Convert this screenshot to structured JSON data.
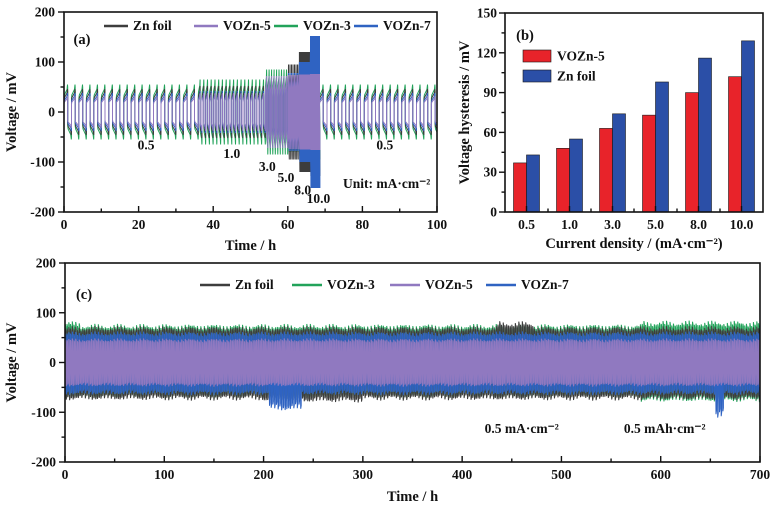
{
  "figure_bg": "#ffffff",
  "colors": {
    "axis": "#111111",
    "zn_foil": "#3d3d3d",
    "vozn3": "#22a35a",
    "vozn5": "#9079c0",
    "vozn7": "#2f63c2",
    "bar_vozn5": "#e8232a",
    "bar_zn": "#2b4fa7"
  },
  "chart_data": [
    {
      "id": "a",
      "type": "line",
      "panel_label": "(a)",
      "xlabel": "Time / h",
      "ylabel": "Voltage / mV",
      "xlim": [
        0,
        100
      ],
      "ylim": [
        -200,
        200
      ],
      "xticks": [
        0,
        20,
        40,
        60,
        80,
        100
      ],
      "yticks": [
        -200,
        -100,
        0,
        100,
        200
      ],
      "x_minor": 10,
      "y_minor": 50,
      "legend": [
        {
          "key": "zn_foil",
          "label": "Zn foil"
        },
        {
          "key": "vozn5",
          "label": "VOZn-5"
        },
        {
          "key": "vozn3",
          "label": "VOZn-3"
        },
        {
          "key": "vozn7",
          "label": "VOZn-7"
        }
      ],
      "annotations": [
        {
          "text": "0.5",
          "x": 22,
          "y": -75
        },
        {
          "text": "1.0",
          "x": 45,
          "y": -92
        },
        {
          "text": "3.0",
          "x": 54.5,
          "y": -118
        },
        {
          "text": "5.0",
          "x": 59.5,
          "y": -140
        },
        {
          "text": "8.0",
          "x": 64,
          "y": -165
        },
        {
          "text": "10.0",
          "x": 68.2,
          "y": -182
        },
        {
          "text": "0.5",
          "x": 86,
          "y": -75
        },
        {
          "text": "Unit: mA·cm⁻²",
          "x": 86.5,
          "y": -152
        }
      ],
      "segments": [
        {
          "current": "0.5",
          "t0": 0,
          "t1": 36,
          "period": 2
        },
        {
          "current": "1.0",
          "t0": 36,
          "t1": 54,
          "period": 1
        },
        {
          "current": "3.0",
          "t0": 54,
          "t1": 60,
          "period": 0.667
        },
        {
          "current": "5.0",
          "t0": 60,
          "t1": 63,
          "period": 0.4
        },
        {
          "current": "8.0",
          "t0": 63,
          "t1": 66,
          "period": 0.25
        },
        {
          "current": "10.0",
          "t0": 66,
          "t1": 68.5,
          "period": 0.2
        },
        {
          "current": "0.5",
          "t0": 68.5,
          "t1": 100,
          "period": 2
        }
      ],
      "amplitudes": {
        "vozn3": [
          55,
          65,
          85,
          80,
          88,
          95,
          55
        ],
        "zn_foil": [
          46,
          52,
          62,
          95,
          120,
          128,
          46
        ],
        "vozn7": [
          38,
          42,
          60,
          78,
          100,
          152,
          38
        ],
        "vozn5": [
          32,
          38,
          72,
          74,
          75,
          76,
          32
        ]
      },
      "draw_order": [
        "vozn3",
        "zn_foil",
        "vozn7",
        "vozn5"
      ]
    },
    {
      "id": "b",
      "type": "bar",
      "panel_label": "(b)",
      "xlabel": "Current density / (mA·cm⁻²)",
      "ylabel": "Voltage hysteresis / mV",
      "ylim": [
        0,
        150
      ],
      "yticks": [
        0,
        30,
        60,
        90,
        120,
        150
      ],
      "y_minor": 15,
      "categories": [
        "0.5",
        "1.0",
        "3.0",
        "5.0",
        "8.0",
        "10.0"
      ],
      "series": [
        {
          "key": "bar_vozn5",
          "label": "VOZn-5",
          "values": [
            37,
            48,
            63,
            73,
            90,
            102
          ]
        },
        {
          "key": "bar_zn",
          "label": "Zn foil",
          "values": [
            43,
            55,
            74,
            98,
            116,
            129
          ]
        }
      ]
    },
    {
      "id": "c",
      "type": "band",
      "panel_label": "(c)",
      "xlabel": "Time / h",
      "ylabel": "Voltage / mV",
      "xlim": [
        0,
        700
      ],
      "ylim": [
        -200,
        200
      ],
      "xticks": [
        0,
        100,
        200,
        300,
        400,
        500,
        600,
        700
      ],
      "yticks": [
        -200,
        -100,
        0,
        100,
        200
      ],
      "x_minor": 50,
      "y_minor": 50,
      "half_period": 0.875,
      "legend": [
        {
          "key": "zn_foil",
          "label": "Zn foil"
        },
        {
          "key": "vozn3",
          "label": "VOZn-3"
        },
        {
          "key": "vozn5",
          "label": "VOZn-5"
        },
        {
          "key": "vozn7",
          "label": "VOZn-7"
        }
      ],
      "annotations": [
        {
          "text": "0.5 mA·cm⁻²",
          "x": 460,
          "y": -142
        },
        {
          "text": "0.5 mAh·cm⁻²",
          "x": 604,
          "y": -142
        }
      ],
      "band": {
        "vozn3": {
          "top": 72,
          "bottom": 68,
          "features": [
            {
              "x0": 580,
              "x1": 700,
              "side": "both",
              "delta": 6
            },
            {
              "x0": 0,
              "x1": 15,
              "side": "top",
              "delta": 5
            }
          ]
        },
        "zn_foil": {
          "top": 68,
          "bottom": 71,
          "features": [
            {
              "x0": 435,
              "x1": 472,
              "side": "top",
              "delta": 9
            },
            {
              "x0": 200,
              "x1": 300,
              "side": "bottom",
              "delta": 4
            }
          ]
        },
        "vozn7": {
          "top": 58,
          "bottom": 61,
          "features": [
            {
              "x0": 205,
              "x1": 238,
              "side": "bottom",
              "delta": 30
            },
            {
              "x0": 655,
              "x1": 663,
              "side": "bottom",
              "delta": 45
            }
          ]
        },
        "vozn5": {
          "top": 45,
          "bottom": 45,
          "features": []
        }
      },
      "draw_order": [
        "vozn3",
        "zn_foil",
        "vozn7",
        "vozn5"
      ]
    }
  ]
}
